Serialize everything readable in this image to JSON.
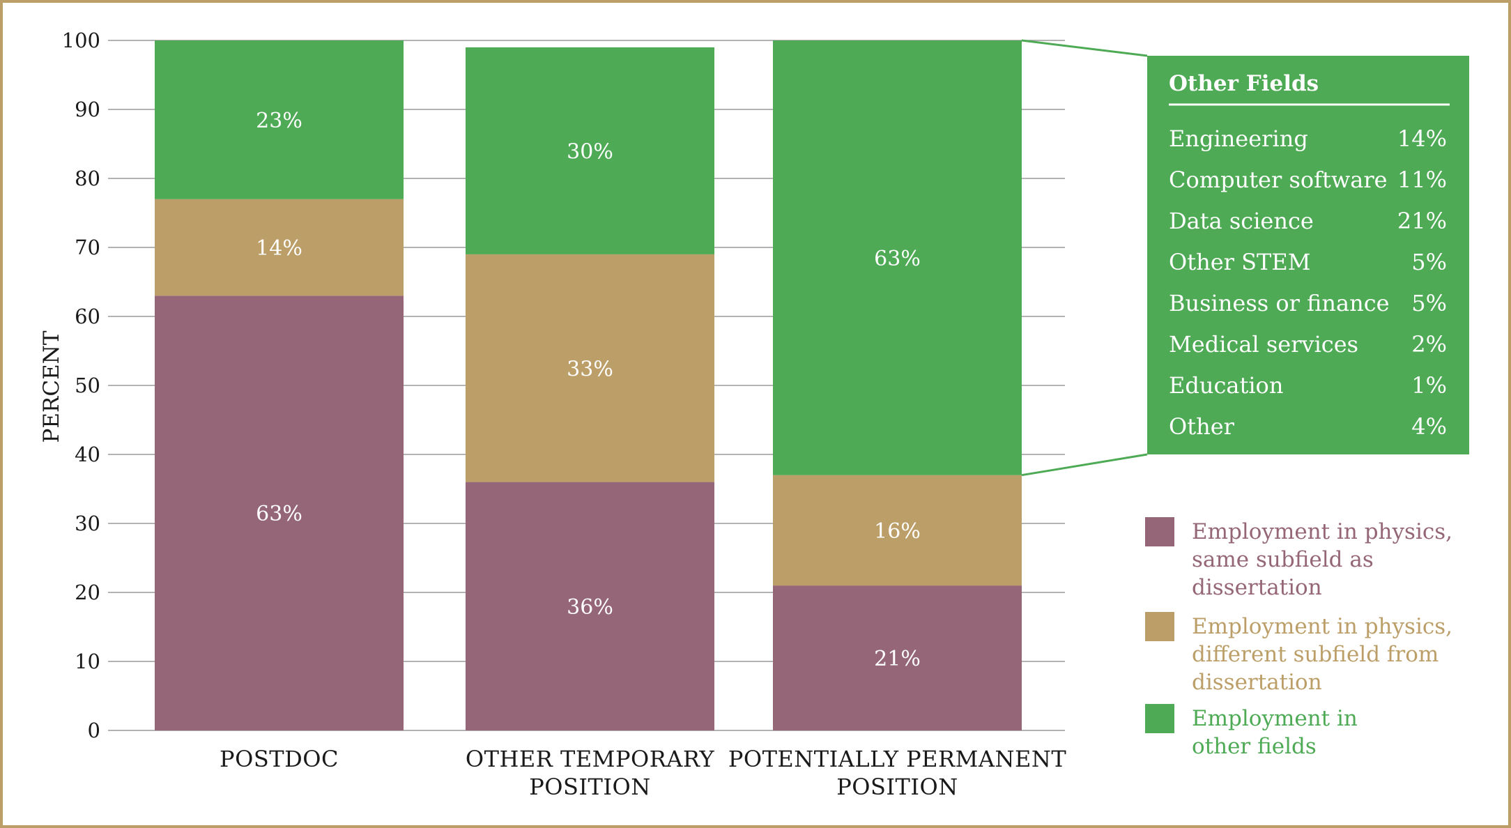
{
  "chart_data": {
    "type": "bar",
    "stacked": true,
    "categories": [
      [
        "POSTDOC"
      ],
      [
        "OTHER TEMPORARY",
        "POSITION"
      ],
      [
        "POTENTIALLY PERMANENT",
        "POSITION"
      ]
    ],
    "ylabel": "PERCENT",
    "ylim": [
      0,
      100
    ],
    "yticks": [
      "0",
      "10",
      "20",
      "30",
      "40",
      "50",
      "60",
      "70",
      "80",
      "90",
      "100"
    ],
    "grid": true,
    "legend_position": "right",
    "series": [
      {
        "name": [
          "Employment in physics,",
          "same subfield as",
          "dissertation"
        ],
        "color": "#956677",
        "values": [
          63,
          36,
          21
        ],
        "labels": [
          "63%",
          "36%",
          "21%"
        ]
      },
      {
        "name": [
          "Employment in physics,",
          "different subfield from",
          "dissertation"
        ],
        "color": "#bc9e68",
        "values": [
          14,
          33,
          16
        ],
        "labels": [
          "14%",
          "33%",
          "16%"
        ]
      },
      {
        "name": [
          "Employment in",
          "other fields"
        ],
        "color": "#4eaa55",
        "values": [
          23,
          30,
          63
        ],
        "labels": [
          "23%",
          "30%",
          "63%"
        ]
      }
    ],
    "breakdown": {
      "title": "Other Fields",
      "applies_to_category": 2,
      "items": [
        {
          "field": "Engineering",
          "value": "14%"
        },
        {
          "field": "Computer software",
          "value": "11%"
        },
        {
          "field": "Data science",
          "value": "21%"
        },
        {
          "field": "Other STEM",
          "value": "5%"
        },
        {
          "field": "Business or finance",
          "value": "5%"
        },
        {
          "field": "Medical services",
          "value": "2%"
        },
        {
          "field": "Education",
          "value": "1%"
        },
        {
          "field": "Other",
          "value": "4%"
        }
      ]
    }
  },
  "colors": {
    "frame_border": "#bc9e68",
    "gridline": "#9a9a9a",
    "axis_text": "#1a1a1a",
    "callout_line": "#4eaa55"
  }
}
